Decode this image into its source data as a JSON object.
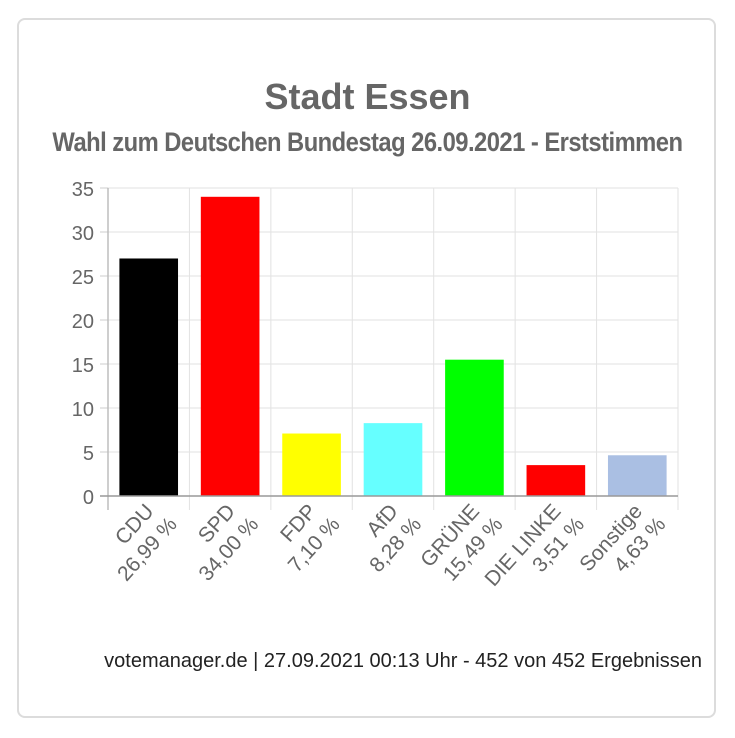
{
  "chart_data": {
    "type": "bar",
    "title": "Stadt Essen",
    "subtitle": "Wahl zum Deutschen Bundestag 26.09.2021  - Erststimmen",
    "categories": [
      "CDU",
      "SPD",
      "FDP",
      "AfD",
      "GRÜNE",
      "DIE LINKE",
      "Sonstige"
    ],
    "value_labels": [
      "26,99 %",
      "34,00 %",
      "7,10 %",
      "8,28 %",
      "15,49 %",
      "3,51 %",
      "4,63 %"
    ],
    "values": [
      26.99,
      34.0,
      7.1,
      8.28,
      15.49,
      3.51,
      4.63
    ],
    "colors": [
      "#000000",
      "#ff0000",
      "#ffff00",
      "#66ffff",
      "#00ff00",
      "#ff0000",
      "#aabfe3"
    ],
    "ylim": [
      0,
      35
    ],
    "yticks": [
      "0",
      "5",
      "10",
      "15",
      "20",
      "25",
      "30",
      "35"
    ],
    "grid": true
  },
  "footer": "votemanager.de | 27.09.2021 00:13 Uhr - 452 von 452 Ergebnissen"
}
